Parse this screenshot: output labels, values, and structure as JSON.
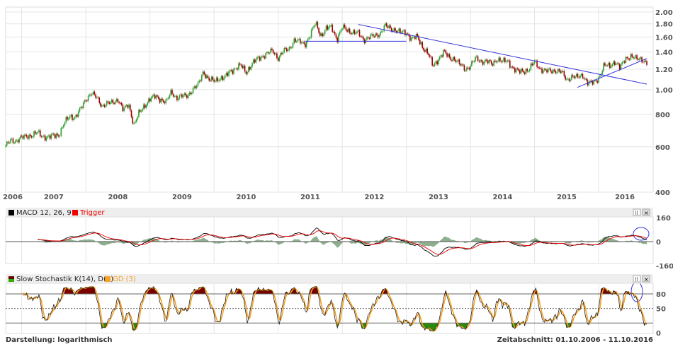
{
  "chart_data": [
    {
      "type": "candlestick",
      "scale": "log",
      "ylim": [
        400,
        2000
      ],
      "y_ticks": [
        "2.000",
        "1.800",
        "1.600",
        "1.400",
        "1.200",
        "1.000",
        "800",
        "600",
        "400"
      ],
      "y_tick_values": [
        2000,
        1800,
        1600,
        1400,
        1200,
        1000,
        800,
        600,
        400
      ],
      "x_ticks": [
        "2006",
        "2007",
        "2008",
        "2009",
        "2010",
        "2011",
        "2012",
        "2013",
        "2014",
        "2015",
        "2016"
      ],
      "x_range": [
        "2006-10-01",
        "2016-10-11"
      ],
      "grid": true,
      "monthly_close_start": "2006-10",
      "monthly_close": [
        600,
        640,
        632,
        650,
        665,
        662,
        680,
        660,
        650,
        665,
        670,
        740,
        790,
        780,
        835,
        920,
        970,
        930,
        870,
        880,
        890,
        920,
        830,
        880,
        730,
        810,
        870,
        920,
        940,
        920,
        890,
        980,
        930,
        940,
        950,
        1000,
        1040,
        1180,
        1090,
        1080,
        1110,
        1110,
        1180,
        1210,
        1240,
        1170,
        1250,
        1310,
        1350,
        1380,
        1410,
        1330,
        1410,
        1430,
        1560,
        1530,
        1500,
        1630,
        1810,
        1620,
        1720,
        1750,
        1570,
        1740,
        1700,
        1670,
        1650,
        1560,
        1600,
        1610,
        1650,
        1770,
        1720,
        1710,
        1660,
        1660,
        1580,
        1600,
        1470,
        1390,
        1230,
        1320,
        1400,
        1330,
        1320,
        1250,
        1200,
        1240,
        1320,
        1290,
        1290,
        1250,
        1320,
        1280,
        1290,
        1210,
        1170,
        1180,
        1200,
        1280,
        1210,
        1180,
        1180,
        1190,
        1170,
        1090,
        1130,
        1110,
        1140,
        1060,
        1060,
        1110,
        1240,
        1230,
        1290,
        1210,
        1320,
        1350,
        1310,
        1320,
        1270
      ],
      "up_color": "#2e9e2e",
      "down_color": "#990000",
      "trendlines": [
        {
          "from": [
            "2011-06",
            1540
          ],
          "to": [
            "2013-01",
            1540
          ]
        },
        {
          "from": [
            "2012-04",
            1790
          ],
          "to": [
            "2016-10",
            1050
          ]
        },
        {
          "from": [
            "2015-09",
            1020
          ],
          "to": [
            "2016-10",
            1320
          ]
        }
      ],
      "trendline_color": "#3333dd"
    },
    {
      "type": "line",
      "title": "MACD 12, 26, 9",
      "series": [
        {
          "name": "MACD 12, 26, 9",
          "color": "#000000"
        },
        {
          "name": "Trigger",
          "color": "#ee0000"
        }
      ],
      "histogram_color": "#5e8f5e",
      "y_ticks": [
        "160",
        "0",
        "-160"
      ],
      "ylim": [
        -160,
        160
      ]
    },
    {
      "type": "line",
      "title": "Slow Stochastik K(14), D(3)",
      "series": [
        {
          "name": "Slow Stochastik K(14), D(3)",
          "color": "#000000"
        },
        {
          "name": "GD (3)",
          "color": "#f5a020"
        }
      ],
      "y_ticks": [
        "80",
        "50",
        "0"
      ],
      "levels": [
        80,
        50,
        20
      ],
      "ylim": [
        0,
        100
      ]
    }
  ],
  "macd_legend": {
    "macd": "MACD 12, 26, 9",
    "trigger": "Trigger"
  },
  "stoch_legend": {
    "k": "Slow Stochastik K(14), D(3)",
    "gd": "GD (3)"
  },
  "footer": {
    "scale": "Darstellung: logarithmisch",
    "period": "Zeitabschnitt: 01.10.2006 - 11.10.2016"
  }
}
